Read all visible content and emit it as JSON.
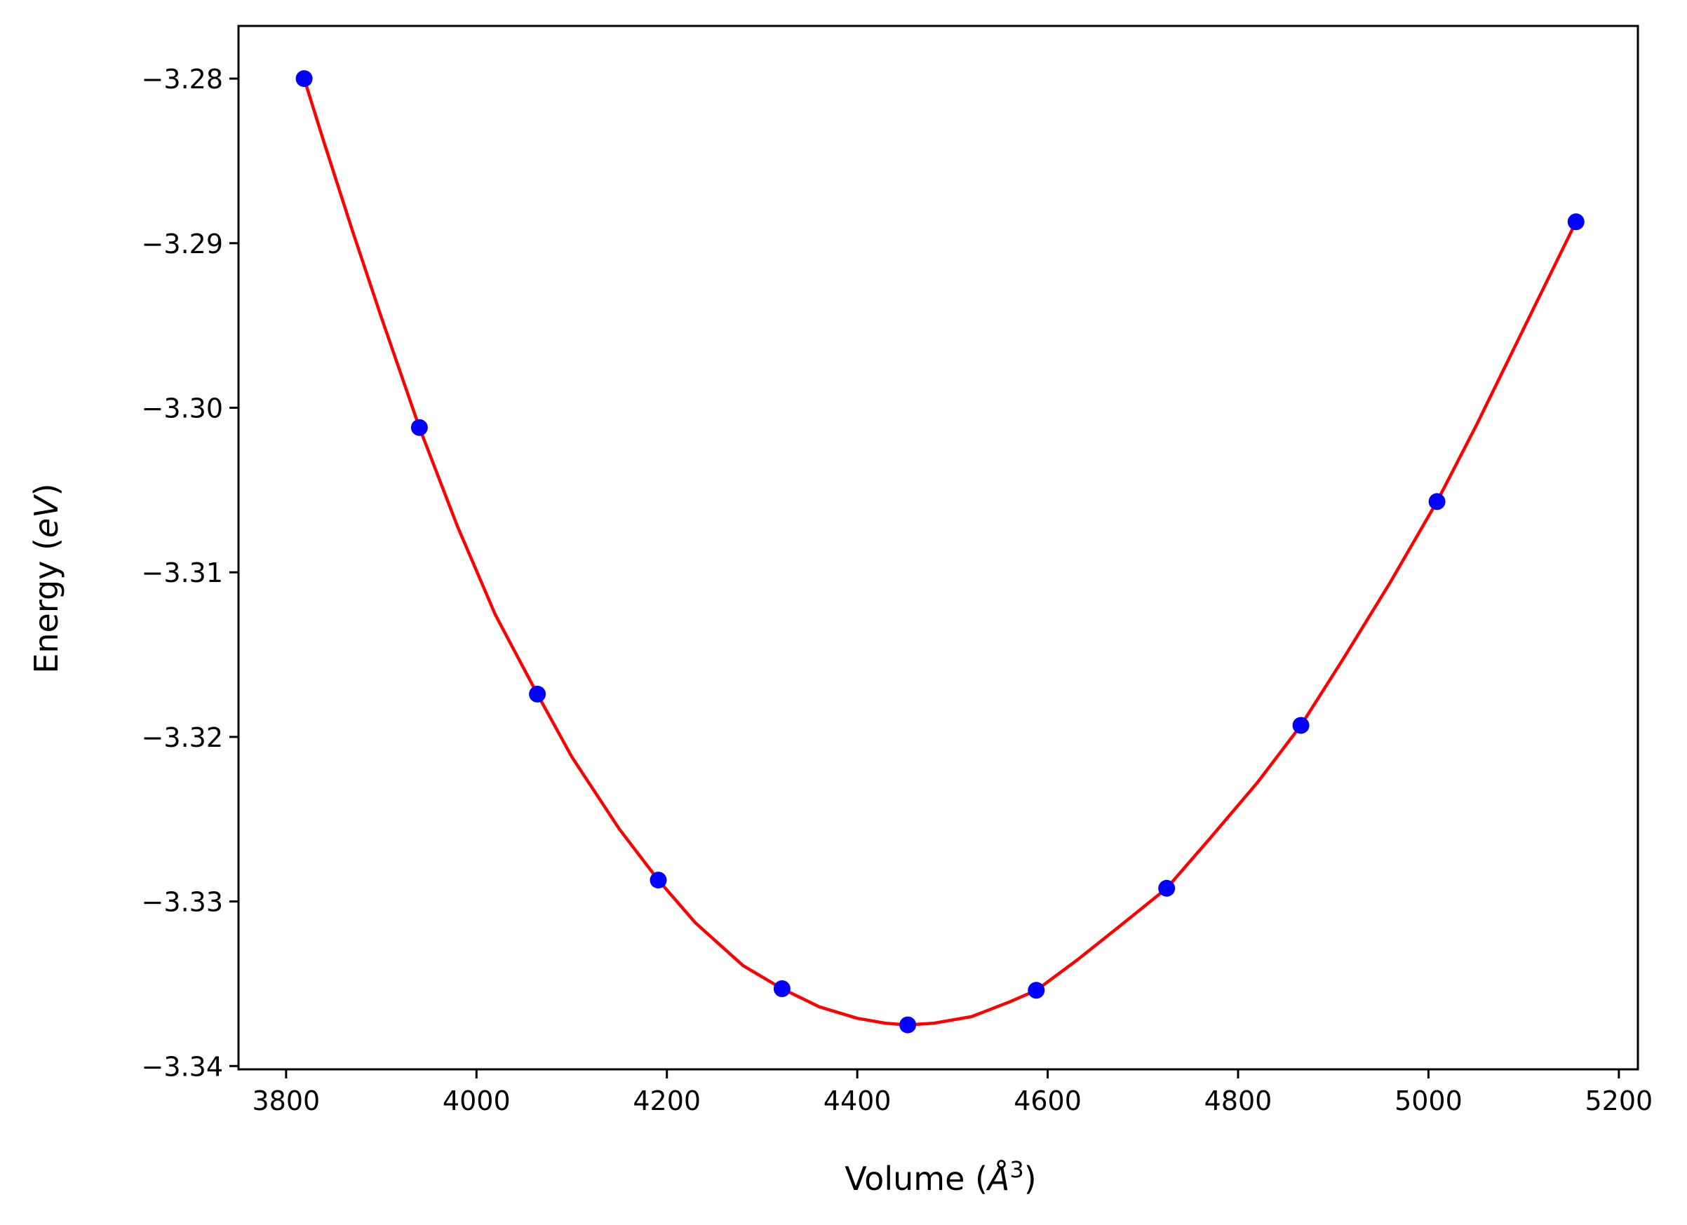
{
  "chart_data": {
    "type": "scatter",
    "title": "",
    "xlabel": {
      "prefix": "Volume (",
      "symbol": "Å",
      "superscript": "3",
      "suffix": ")"
    },
    "ylabel": {
      "prefix": "Energy (",
      "unit": "eV",
      "suffix": ")"
    },
    "xlim": [
      3750,
      5220
    ],
    "ylim": [
      -3.3402,
      -3.2768
    ],
    "x_ticks": [
      3800,
      4000,
      4200,
      4400,
      4600,
      4800,
      5000,
      5200
    ],
    "x_tick_labels": [
      "3800",
      "4000",
      "4200",
      "4400",
      "4600",
      "4800",
      "5000",
      "5200"
    ],
    "y_ticks": [
      -3.28,
      -3.29,
      -3.3,
      -3.31,
      -3.32,
      -3.33,
      -3.34
    ],
    "y_tick_labels": [
      "−3.28",
      "−3.29",
      "−3.30",
      "−3.31",
      "−3.32",
      "−3.33",
      "−3.34"
    ],
    "grid": false,
    "series": [
      {
        "kind": "points",
        "color": "#0000ff",
        "x": [
          3819,
          3940,
          4064,
          4191,
          4321,
          4453,
          4588,
          4725,
          4866,
          5009,
          5155
        ],
        "y": [
          -3.28,
          -3.3012,
          -3.3174,
          -3.3287,
          -3.3353,
          -3.3375,
          -3.3354,
          -3.3292,
          -3.3193,
          -3.3057,
          -3.2887
        ]
      },
      {
        "kind": "fit-curve",
        "color": "#ff0000",
        "x": [
          3819,
          3840,
          3870,
          3900,
          3940,
          3980,
          4020,
          4064,
          4100,
          4150,
          4191,
          4230,
          4280,
          4321,
          4360,
          4400,
          4430,
          4453,
          4480,
          4520,
          4560,
          4588,
          4630,
          4680,
          4725,
          4770,
          4820,
          4866,
          4910,
          4960,
          5009,
          5050,
          5100,
          5155
        ],
        "y": [
          -3.28,
          -3.2839,
          -3.2893,
          -3.2945,
          -3.3012,
          -3.3072,
          -3.3126,
          -3.3174,
          -3.3212,
          -3.3256,
          -3.3287,
          -3.3313,
          -3.3339,
          -3.3353,
          -3.3364,
          -3.3371,
          -3.3374,
          -3.3375,
          -3.3374,
          -3.337,
          -3.3361,
          -3.3354,
          -3.3336,
          -3.3313,
          -3.3292,
          -3.3262,
          -3.3228,
          -3.3193,
          -3.3153,
          -3.3106,
          -3.3057,
          -3.3011,
          -3.2952,
          -3.2887
        ]
      }
    ]
  }
}
